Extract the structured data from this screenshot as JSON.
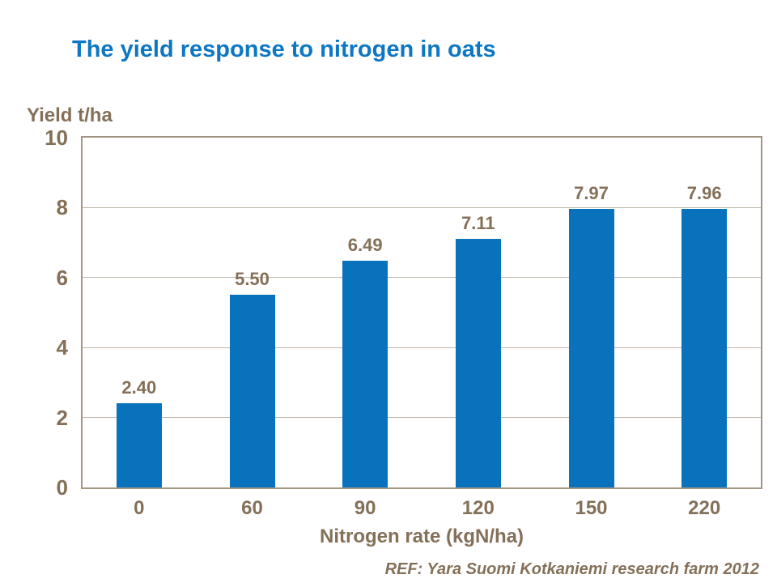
{
  "slide": {
    "title": "The yield response to nitrogen in oats",
    "ref_note": "REF: Yara Suomi Kotkaniemi research farm 2012"
  },
  "chart_data": {
    "type": "bar",
    "title": "The yield response to nitrogen in oats",
    "categories": [
      "0",
      "60",
      "90",
      "120",
      "150",
      "220"
    ],
    "values": [
      2.4,
      5.5,
      6.49,
      7.11,
      7.97,
      7.96
    ],
    "value_labels": [
      "2.40",
      "5.50",
      "6.49",
      "7.11",
      "7.97",
      "7.96"
    ],
    "xlabel": "Nitrogen rate (kgN/ha)",
    "ylabel": "Yield t/ha",
    "ylim": [
      0,
      10
    ],
    "yticks": [
      0,
      2,
      4,
      6,
      8,
      10
    ],
    "grid": true,
    "legend": false,
    "colors": {
      "bar": "#0872BC",
      "title": "#0D77C3",
      "text": "#847058",
      "gridline": "#BEB5A9",
      "axis_border": "#A39682",
      "background": "#FFFFFF"
    }
  }
}
